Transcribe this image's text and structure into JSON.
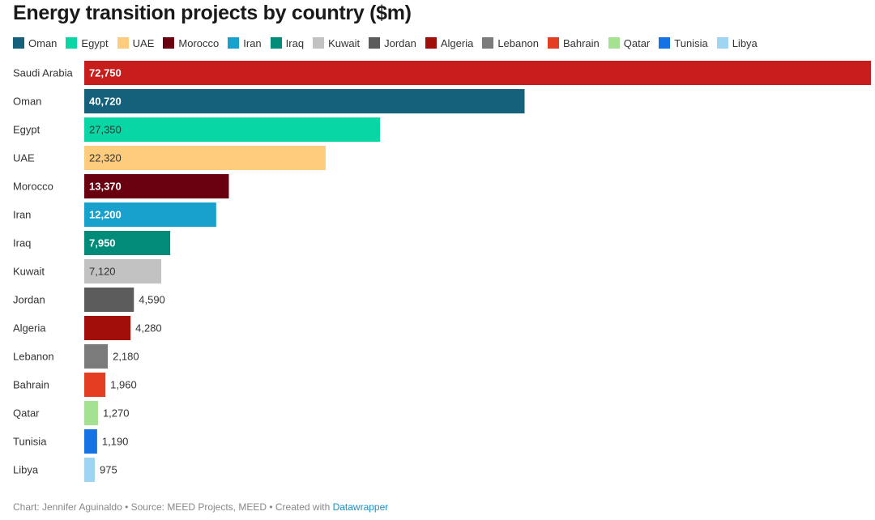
{
  "chart_data": {
    "type": "bar",
    "orientation": "horizontal",
    "title": "Energy transition projects by country ($m)",
    "categories": [
      "Saudi Arabia",
      "Oman",
      "Egypt",
      "UAE",
      "Morocco",
      "Iran",
      "Iraq",
      "Kuwait",
      "Jordan",
      "Algeria",
      "Lebanon",
      "Bahrain",
      "Qatar",
      "Tunisia",
      "Libya"
    ],
    "values": [
      72750,
      40720,
      27350,
      22320,
      13370,
      12200,
      7950,
      7120,
      4590,
      4280,
      2180,
      1960,
      1270,
      1190,
      975
    ],
    "value_labels": [
      "72,750",
      "40,720",
      "27,350",
      "22,320",
      "13,370",
      "12,200",
      "7,950",
      "7,120",
      "4,590",
      "4,280",
      "2,180",
      "1,960",
      "1,270",
      "1,190",
      "975"
    ],
    "colors": [
      "#c71e1d",
      "#15607a",
      "#09d6a5",
      "#fecc7d",
      "#680010",
      "#18a1cd",
      "#008c78",
      "#c2c2c2",
      "#5c5c5c",
      "#a20f0b",
      "#7b7b7b",
      "#e33e21",
      "#a4e192",
      "#1673e6",
      "#9fd4f2"
    ],
    "label_colors": [
      "#ffffff",
      "#ffffff",
      "#333333",
      "#333333",
      "#ffffff",
      "#ffffff",
      "#ffffff",
      "#333333",
      "#ffffff",
      "#ffffff",
      "#333333",
      "#333333",
      "#333333",
      "#333333",
      "#333333"
    ],
    "xlim": [
      0,
      72750
    ],
    "grid": false,
    "legend": {
      "placement": "top",
      "entries": [
        {
          "name": "Oman",
          "color": "#15607a"
        },
        {
          "name": "Egypt",
          "color": "#09d6a5"
        },
        {
          "name": "UAE",
          "color": "#fecc7d"
        },
        {
          "name": "Morocco",
          "color": "#680010"
        },
        {
          "name": "Iran",
          "color": "#18a1cd"
        },
        {
          "name": "Iraq",
          "color": "#008c78"
        },
        {
          "name": "Kuwait",
          "color": "#c2c2c2"
        },
        {
          "name": "Jordan",
          "color": "#5c5c5c"
        },
        {
          "name": "Algeria",
          "color": "#a20f0b"
        },
        {
          "name": "Lebanon",
          "color": "#7b7b7b"
        },
        {
          "name": "Bahrain",
          "color": "#e33e21"
        },
        {
          "name": "Qatar",
          "color": "#a4e192"
        },
        {
          "name": "Tunisia",
          "color": "#1673e6"
        },
        {
          "name": "Libya",
          "color": "#9fd4f2"
        }
      ]
    }
  },
  "footer": {
    "credit": "Chart: Jennifer Aguinaldo • Source: MEED Projects, MEED • Created with ",
    "link": "Datawrapper"
  }
}
